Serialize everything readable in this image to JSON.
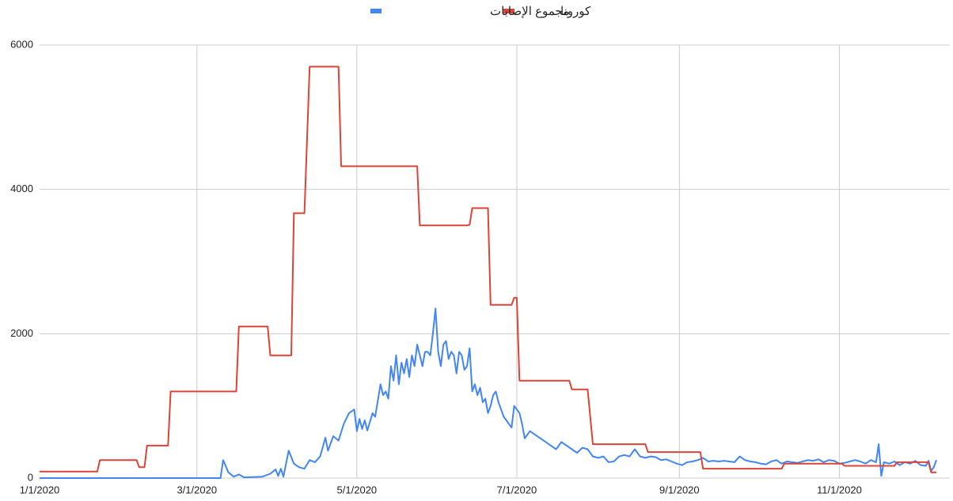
{
  "chart_data": {
    "type": "line",
    "legend": "top",
    "grid": true,
    "xlim": [
      "2020-01-01",
      "2020-12-08"
    ],
    "xticks": [
      {
        "value": "2020-01-01",
        "label": "1/1/2020"
      },
      {
        "value": "2020-03-01",
        "label": "3/1/2020"
      },
      {
        "value": "2020-05-01",
        "label": "5/1/2020"
      },
      {
        "value": "2020-07-01",
        "label": "7/1/2020"
      },
      {
        "value": "2020-09-01",
        "label": "9/1/2020"
      },
      {
        "value": "2020-11-01",
        "label": "11/1/2020"
      }
    ],
    "ylim": [
      0,
      6000
    ],
    "yticks": [
      0,
      2000,
      4000,
      6000
    ],
    "series": [
      {
        "name": "كورونا",
        "color": "#db4437",
        "x": [
          "2020-01-01",
          "2020-01-23",
          "2020-01-24",
          "2020-02-07",
          "2020-02-08",
          "2020-02-10",
          "2020-02-11",
          "2020-02-19",
          "2020-02-20",
          "2020-03-16",
          "2020-03-17",
          "2020-03-28",
          "2020-03-29",
          "2020-04-06",
          "2020-04-07",
          "2020-04-11",
          "2020-04-13",
          "2020-04-24",
          "2020-04-25",
          "2020-05-24",
          "2020-05-25",
          "2020-06-12",
          "2020-06-13",
          "2020-06-14",
          "2020-06-20",
          "2020-06-21",
          "2020-06-29",
          "2020-06-30",
          "2020-07-01",
          "2020-07-02",
          "2020-07-21",
          "2020-07-22",
          "2020-07-28",
          "2020-07-30",
          "2020-08-19",
          "2020-08-20",
          "2020-09-09",
          "2020-09-10",
          "2020-10-10",
          "2020-10-11",
          "2020-11-02",
          "2020-11-03",
          "2020-11-22",
          "2020-11-23",
          "2020-12-05",
          "2020-12-06",
          "2020-12-08"
        ],
        "values": [
          90,
          90,
          250,
          250,
          150,
          150,
          450,
          450,
          1200,
          1200,
          2100,
          2100,
          1700,
          1700,
          3670,
          3670,
          5700,
          5700,
          4320,
          4320,
          3500,
          3500,
          3510,
          3740,
          3740,
          2400,
          2400,
          2500,
          2500,
          1350,
          1350,
          1230,
          1230,
          470,
          470,
          360,
          360,
          130,
          130,
          200,
          200,
          170,
          170,
          220,
          220,
          80,
          80
        ]
      },
      {
        "name": "مجموع الإصابات",
        "color": "#4285f4",
        "x": [
          "2020-01-01",
          "2020-03-10",
          "2020-03-11",
          "2020-03-13",
          "2020-03-15",
          "2020-03-17",
          "2020-03-19",
          "2020-03-26",
          "2020-03-29",
          "2020-03-31",
          "2020-04-01",
          "2020-04-02",
          "2020-04-03",
          "2020-04-05",
          "2020-04-07",
          "2020-04-09",
          "2020-04-11",
          "2020-04-13",
          "2020-04-15",
          "2020-04-17",
          "2020-04-19",
          "2020-04-20",
          "2020-04-22",
          "2020-04-24",
          "2020-04-26",
          "2020-04-28",
          "2020-04-30",
          "2020-05-01",
          "2020-05-02",
          "2020-05-03",
          "2020-05-04",
          "2020-05-05",
          "2020-05-07",
          "2020-05-08",
          "2020-05-10",
          "2020-05-11",
          "2020-05-12",
          "2020-05-13",
          "2020-05-14",
          "2020-05-15",
          "2020-05-16",
          "2020-05-17",
          "2020-05-18",
          "2020-05-19",
          "2020-05-20",
          "2020-05-21",
          "2020-05-22",
          "2020-05-23",
          "2020-05-24",
          "2020-05-25",
          "2020-05-26",
          "2020-05-27",
          "2020-05-28",
          "2020-05-29",
          "2020-05-30",
          "2020-05-31",
          "2020-06-01",
          "2020-06-02",
          "2020-06-03",
          "2020-06-04",
          "2020-06-05",
          "2020-06-06",
          "2020-06-07",
          "2020-06-08",
          "2020-06-09",
          "2020-06-10",
          "2020-06-11",
          "2020-06-12",
          "2020-06-13",
          "2020-06-14",
          "2020-06-15",
          "2020-06-16",
          "2020-06-17",
          "2020-06-18",
          "2020-06-19",
          "2020-06-20",
          "2020-06-21",
          "2020-06-22",
          "2020-06-23",
          "2020-06-24",
          "2020-06-25",
          "2020-06-26",
          "2020-06-27",
          "2020-06-28",
          "2020-06-29",
          "2020-06-30",
          "2020-07-01",
          "2020-07-02",
          "2020-07-03",
          "2020-07-04",
          "2020-07-06",
          "2020-07-08",
          "2020-07-10",
          "2020-07-12",
          "2020-07-14",
          "2020-07-16",
          "2020-07-18",
          "2020-07-20",
          "2020-07-22",
          "2020-07-24",
          "2020-07-26",
          "2020-07-28",
          "2020-07-30",
          "2020-08-01",
          "2020-08-03",
          "2020-08-05",
          "2020-08-07",
          "2020-08-09",
          "2020-08-11",
          "2020-08-13",
          "2020-08-15",
          "2020-08-17",
          "2020-08-19",
          "2020-08-21",
          "2020-08-23",
          "2020-08-25",
          "2020-08-27",
          "2020-08-29",
          "2020-08-31",
          "2020-09-02",
          "2020-09-04",
          "2020-09-06",
          "2020-09-08",
          "2020-09-10",
          "2020-09-12",
          "2020-09-14",
          "2020-09-16",
          "2020-09-18",
          "2020-09-20",
          "2020-09-22",
          "2020-09-24",
          "2020-09-26",
          "2020-09-28",
          "2020-09-30",
          "2020-10-02",
          "2020-10-04",
          "2020-10-06",
          "2020-10-08",
          "2020-10-10",
          "2020-10-12",
          "2020-10-14",
          "2020-10-16",
          "2020-10-18",
          "2020-10-20",
          "2020-10-22",
          "2020-10-24",
          "2020-10-26",
          "2020-10-28",
          "2020-10-30",
          "2020-11-01",
          "2020-11-03",
          "2020-11-05",
          "2020-11-07",
          "2020-11-09",
          "2020-11-11",
          "2020-11-13",
          "2020-11-15",
          "2020-11-16",
          "2020-11-17",
          "2020-11-18",
          "2020-11-20",
          "2020-11-22",
          "2020-11-24",
          "2020-11-26",
          "2020-11-28",
          "2020-11-30",
          "2020-12-02",
          "2020-12-04",
          "2020-12-05",
          "2020-12-06",
          "2020-12-07",
          "2020-12-08"
        ],
        "values": [
          0,
          0,
          250,
          80,
          20,
          50,
          10,
          20,
          60,
          120,
          30,
          130,
          20,
          380,
          200,
          150,
          130,
          250,
          220,
          300,
          560,
          380,
          580,
          520,
          750,
          900,
          950,
          650,
          820,
          680,
          800,
          660,
          900,
          850,
          1300,
          1150,
          1200,
          1100,
          1550,
          1350,
          1700,
          1300,
          1600,
          1450,
          1650,
          1400,
          1700,
          1550,
          1850,
          1700,
          1550,
          1750,
          1750,
          1700,
          2000,
          2350,
          1750,
          1550,
          1850,
          1900,
          1650,
          1750,
          1700,
          1450,
          1750,
          1700,
          1500,
          1550,
          1800,
          1200,
          1300,
          1150,
          1250,
          1050,
          1100,
          900,
          1000,
          1150,
          1200,
          1050,
          950,
          850,
          800,
          750,
          700,
          1000,
          950,
          900,
          750,
          550,
          650,
          600,
          550,
          500,
          450,
          400,
          500,
          450,
          400,
          350,
          420,
          400,
          300,
          280,
          300,
          220,
          230,
          300,
          320,
          300,
          400,
          300,
          280,
          300,
          290,
          250,
          260,
          230,
          200,
          180,
          220,
          230,
          250,
          280,
          230,
          240,
          230,
          240,
          230,
          220,
          300,
          250,
          230,
          220,
          200,
          190,
          230,
          250,
          200,
          230,
          220,
          210,
          230,
          250,
          240,
          260,
          220,
          250,
          240,
          200,
          210,
          230,
          250,
          230,
          200,
          250,
          220,
          470,
          30,
          220,
          200,
          230,
          180,
          220,
          200,
          240,
          180,
          170,
          240,
          100,
          150,
          250
        ]
      }
    ]
  }
}
